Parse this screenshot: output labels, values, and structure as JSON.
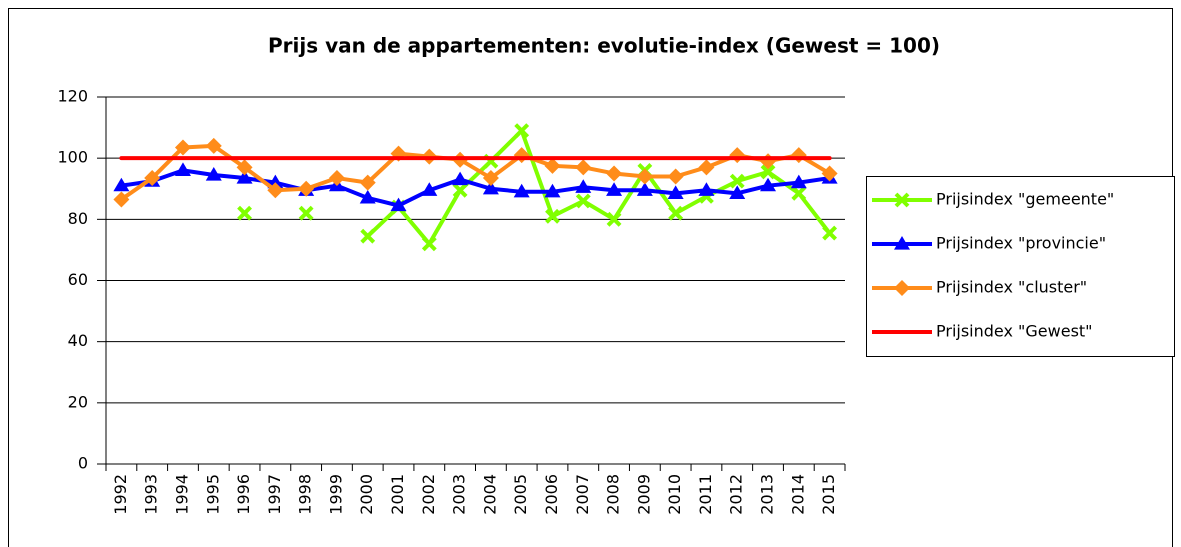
{
  "chart_data": {
    "type": "line",
    "title": "Prijs van de appartementen: evolutie-index (Gewest = 100)",
    "categories": [
      "1992",
      "1993",
      "1994",
      "1995",
      "1996",
      "1997",
      "1998",
      "1999",
      "2000",
      "2001",
      "2002",
      "2003",
      "2004",
      "2005",
      "2006",
      "2007",
      "2008",
      "2009",
      "2010",
      "2011",
      "2012",
      "2013",
      "2014",
      "2015"
    ],
    "series": [
      {
        "name": "Prijsindex \"gemeente\"",
        "color": "#80ff00",
        "marker": "x",
        "values": [
          null,
          null,
          null,
          null,
          82,
          null,
          82,
          null,
          74.5,
          84,
          72,
          89.5,
          99,
          109,
          81,
          86,
          80,
          96,
          82,
          87.5,
          92.5,
          95.5,
          88.5,
          75.5
        ]
      },
      {
        "name": "Prijsindex \"provincie\"",
        "color": "#0000ff",
        "marker": "triangle",
        "values": [
          91,
          92.5,
          96,
          94.5,
          93.5,
          92,
          89.5,
          91,
          87,
          84.5,
          89.5,
          93,
          90,
          89,
          89,
          90.5,
          89.5,
          89.5,
          88.5,
          89.5,
          88.5,
          91,
          92,
          93.5
        ]
      },
      {
        "name": "Prijsindex \"cluster\"",
        "color": "#ff8c1a",
        "marker": "diamond",
        "values": [
          86.5,
          93.5,
          103.5,
          104,
          97,
          89.5,
          90,
          93.5,
          92,
          101.5,
          100.5,
          99.5,
          93.5,
          101,
          97.5,
          97,
          95,
          94,
          94,
          97,
          101,
          99,
          101,
          95
        ]
      },
      {
        "name": "Prijsindex \"Gewest\"",
        "color": "#ff0000",
        "marker": "none",
        "values": [
          100,
          100,
          100,
          100,
          100,
          100,
          100,
          100,
          100,
          100,
          100,
          100,
          100,
          100,
          100,
          100,
          100,
          100,
          100,
          100,
          100,
          100,
          100,
          100
        ]
      }
    ],
    "ylim": [
      0,
      120
    ],
    "yticks": [
      0,
      20,
      40,
      60,
      80,
      100,
      120
    ],
    "grid": true,
    "legend": "right"
  }
}
